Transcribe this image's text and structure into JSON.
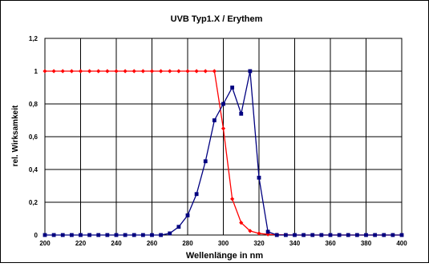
{
  "chart_data": {
    "type": "line",
    "title": "UVB Typ1.X / Erythem",
    "xlabel": "Wellenlänge in nm",
    "ylabel": "rel. Wirksamkeit",
    "xlim": [
      200,
      400
    ],
    "ylim": [
      0,
      1.2
    ],
    "x_ticks": [
      "200",
      "220",
      "240",
      "260",
      "280",
      "300",
      "320",
      "340",
      "360",
      "380",
      "400"
    ],
    "y_ticks": [
      "0",
      "0,2",
      "0,4",
      "0,6",
      "0,8",
      "1",
      "1,2"
    ],
    "grid": true,
    "legend": "none",
    "series": [
      {
        "color": "#ff0000",
        "marker": "diamond",
        "points": [
          [
            200,
            1
          ],
          [
            205,
            1
          ],
          [
            210,
            1
          ],
          [
            215,
            1
          ],
          [
            220,
            1
          ],
          [
            225,
            1
          ],
          [
            230,
            1
          ],
          [
            235,
            1
          ],
          [
            240,
            1
          ],
          [
            245,
            1
          ],
          [
            250,
            1
          ],
          [
            255,
            1
          ],
          [
            260,
            1
          ],
          [
            265,
            1
          ],
          [
            270,
            1
          ],
          [
            275,
            1
          ],
          [
            280,
            1
          ],
          [
            285,
            1
          ],
          [
            290,
            1
          ],
          [
            295,
            1
          ],
          [
            300,
            0.65
          ],
          [
            305,
            0.22
          ],
          [
            310,
            0.075
          ],
          [
            315,
            0.025
          ],
          [
            320,
            0.01
          ],
          [
            325,
            0.004
          ],
          [
            330,
            0.002
          ],
          [
            335,
            0.001
          ],
          [
            340,
            0
          ],
          [
            345,
            0
          ],
          [
            350,
            0
          ],
          [
            355,
            0
          ],
          [
            360,
            0
          ],
          [
            365,
            0
          ],
          [
            370,
            0
          ],
          [
            375,
            0
          ],
          [
            380,
            0
          ],
          [
            385,
            0
          ],
          [
            390,
            0
          ],
          [
            395,
            0
          ],
          [
            400,
            0
          ]
        ]
      },
      {
        "color": "#000080",
        "marker": "square",
        "points": [
          [
            200,
            0
          ],
          [
            205,
            0
          ],
          [
            210,
            0
          ],
          [
            215,
            0
          ],
          [
            220,
            0
          ],
          [
            225,
            0
          ],
          [
            230,
            0
          ],
          [
            235,
            0
          ],
          [
            240,
            0
          ],
          [
            245,
            0
          ],
          [
            250,
            0
          ],
          [
            255,
            0
          ],
          [
            260,
            0
          ],
          [
            265,
            0
          ],
          [
            270,
            0.01
          ],
          [
            275,
            0.05
          ],
          [
            280,
            0.12
          ],
          [
            285,
            0.25
          ],
          [
            290,
            0.45
          ],
          [
            295,
            0.7
          ],
          [
            300,
            0.8
          ],
          [
            305,
            0.9
          ],
          [
            310,
            0.74
          ],
          [
            315,
            1
          ],
          [
            320,
            0.35
          ],
          [
            325,
            0.02
          ],
          [
            330,
            0
          ],
          [
            335,
            0
          ],
          [
            340,
            0
          ],
          [
            345,
            0
          ],
          [
            350,
            0
          ],
          [
            355,
            0
          ],
          [
            360,
            0
          ],
          [
            365,
            0
          ],
          [
            370,
            0
          ],
          [
            375,
            0
          ],
          [
            380,
            0
          ],
          [
            385,
            0
          ],
          [
            390,
            0
          ],
          [
            395,
            0
          ],
          [
            400,
            0
          ]
        ]
      }
    ]
  }
}
